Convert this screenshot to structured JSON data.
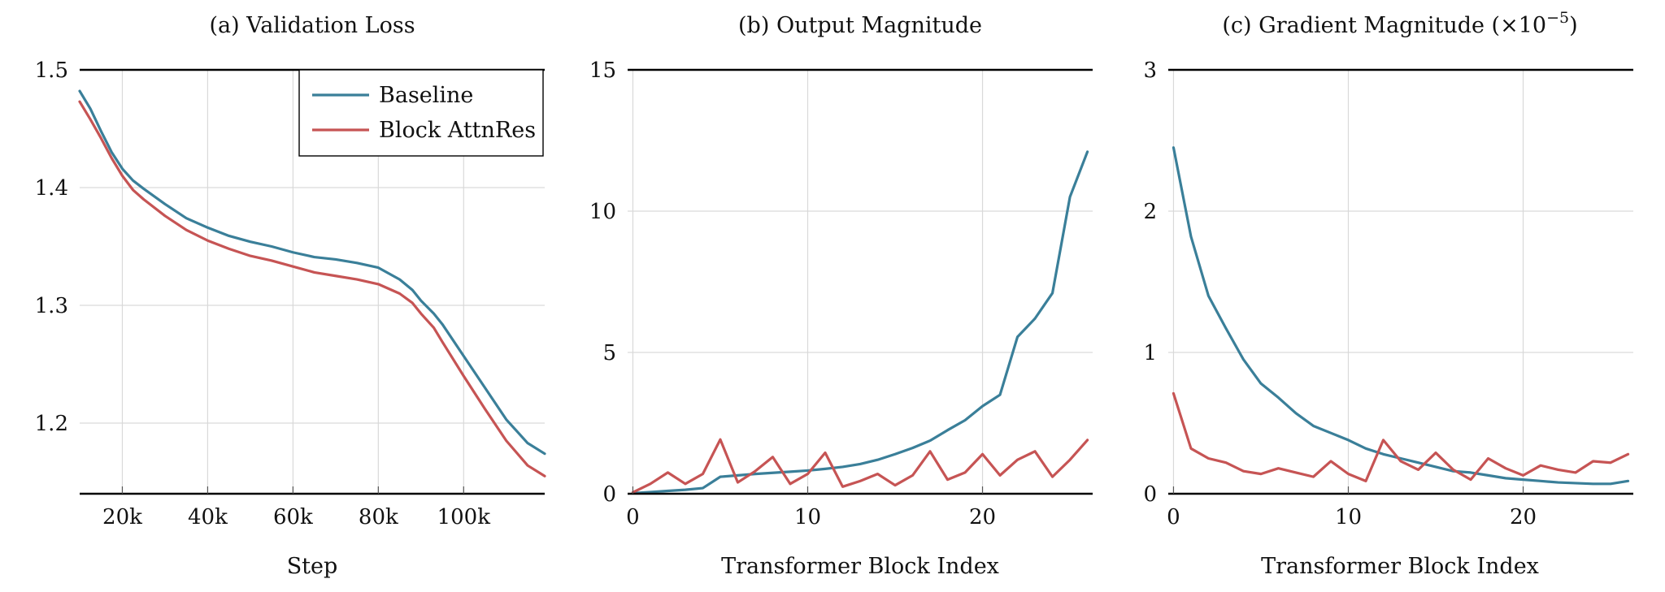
{
  "colors": {
    "baseline": "#3a7f99",
    "block_attnres": "#c65454",
    "grid": "#d9d9d9",
    "axis": "#000000"
  },
  "chart_data": [
    {
      "type": "line",
      "title": "(a) Validation Loss",
      "xlabel": "Step",
      "ylabel": "",
      "xlim": [
        10000,
        119000
      ],
      "ylim": [
        1.14,
        1.5
      ],
      "xticks": [
        20000,
        40000,
        60000,
        80000,
        100000
      ],
      "xtick_labels": [
        "20k",
        "40k",
        "60k",
        "80k",
        "100k"
      ],
      "yticks": [
        1.2,
        1.3,
        1.4,
        1.5
      ],
      "ytick_labels": [
        "1.2",
        "1.3",
        "1.4",
        "1.5"
      ],
      "grid": true,
      "legend": {
        "placement": "top-right",
        "entries": [
          "Baseline",
          "Block AttnRes"
        ]
      },
      "series": [
        {
          "name": "Baseline",
          "x": [
            10000,
            12500,
            15000,
            17500,
            20000,
            22500,
            25000,
            30000,
            35000,
            40000,
            45000,
            50000,
            55000,
            60000,
            65000,
            70000,
            75000,
            80000,
            85000,
            88000,
            90000,
            93000,
            95000,
            100000,
            105000,
            110000,
            115000,
            119000
          ],
          "y": [
            1.482,
            1.467,
            1.448,
            1.43,
            1.416,
            1.406,
            1.399,
            1.386,
            1.374,
            1.366,
            1.359,
            1.354,
            1.35,
            1.345,
            1.341,
            1.339,
            1.336,
            1.332,
            1.322,
            1.313,
            1.304,
            1.293,
            1.284,
            1.257,
            1.23,
            1.203,
            1.183,
            1.174
          ]
        },
        {
          "name": "Block AttnRes",
          "x": [
            10000,
            12500,
            15000,
            17500,
            20000,
            22500,
            25000,
            30000,
            35000,
            40000,
            45000,
            50000,
            55000,
            60000,
            65000,
            70000,
            75000,
            80000,
            85000,
            88000,
            90000,
            93000,
            95000,
            100000,
            105000,
            110000,
            115000,
            119000
          ],
          "y": [
            1.473,
            1.458,
            1.442,
            1.425,
            1.41,
            1.398,
            1.39,
            1.376,
            1.364,
            1.355,
            1.348,
            1.342,
            1.338,
            1.333,
            1.328,
            1.325,
            1.322,
            1.318,
            1.31,
            1.302,
            1.293,
            1.281,
            1.269,
            1.24,
            1.212,
            1.185,
            1.164,
            1.155
          ]
        }
      ]
    },
    {
      "type": "line",
      "title": "(b) Output Magnitude",
      "xlabel": "Transformer Block Index",
      "ylabel": "",
      "xlim": [
        -0.3,
        26.3
      ],
      "ylim": [
        0,
        15
      ],
      "xticks": [
        0,
        10,
        20
      ],
      "xtick_labels": [
        "0",
        "10",
        "20"
      ],
      "yticks": [
        0,
        5,
        10,
        15
      ],
      "ytick_labels": [
        "0",
        "5",
        "10",
        "15"
      ],
      "grid": true,
      "series": [
        {
          "name": "Baseline",
          "x": [
            0,
            1,
            2,
            3,
            4,
            5,
            6,
            7,
            8,
            9,
            10,
            11,
            12,
            13,
            14,
            15,
            16,
            17,
            18,
            19,
            20,
            21,
            22,
            23,
            24,
            25,
            26
          ],
          "y": [
            0.02,
            0.06,
            0.1,
            0.14,
            0.2,
            0.6,
            0.65,
            0.7,
            0.74,
            0.78,
            0.82,
            0.88,
            0.95,
            1.05,
            1.2,
            1.4,
            1.62,
            1.88,
            2.25,
            2.6,
            3.1,
            3.5,
            5.55,
            6.2,
            7.1,
            10.5,
            12.1
          ]
        },
        {
          "name": "Block AttnRes",
          "x": [
            0,
            1,
            2,
            3,
            4,
            5,
            6,
            7,
            8,
            9,
            10,
            11,
            12,
            13,
            14,
            15,
            16,
            17,
            18,
            19,
            20,
            21,
            22,
            23,
            24,
            25,
            26
          ],
          "y": [
            0.05,
            0.35,
            0.75,
            0.35,
            0.7,
            1.92,
            0.4,
            0.8,
            1.3,
            0.35,
            0.7,
            1.45,
            0.25,
            0.45,
            0.7,
            0.3,
            0.65,
            1.5,
            0.5,
            0.75,
            1.4,
            0.65,
            1.2,
            1.5,
            0.6,
            1.2,
            1.9
          ]
        }
      ]
    },
    {
      "type": "line",
      "title": "(c) Gradient Magnitude (×10⁻⁵)",
      "title_main": "(c) Gradient Magnitude (",
      "title_times": "×10",
      "title_exp": "−5",
      "title_end": ")",
      "xlabel": "Transformer Block Index",
      "ylabel": "",
      "xlim": [
        -0.3,
        26.3
      ],
      "ylim": [
        0,
        3
      ],
      "xticks": [
        0,
        10,
        20
      ],
      "xtick_labels": [
        "0",
        "10",
        "20"
      ],
      "yticks": [
        0,
        1,
        2,
        3
      ],
      "ytick_labels": [
        "0",
        "1",
        "2",
        "3"
      ],
      "grid": true,
      "series": [
        {
          "name": "Baseline",
          "x": [
            0,
            1,
            2,
            3,
            4,
            5,
            6,
            7,
            8,
            9,
            10,
            11,
            12,
            13,
            14,
            15,
            16,
            17,
            18,
            19,
            20,
            21,
            22,
            23,
            24,
            25,
            26
          ],
          "y": [
            2.45,
            1.82,
            1.4,
            1.17,
            0.95,
            0.78,
            0.68,
            0.57,
            0.48,
            0.43,
            0.38,
            0.32,
            0.28,
            0.25,
            0.22,
            0.19,
            0.16,
            0.15,
            0.13,
            0.11,
            0.1,
            0.09,
            0.08,
            0.075,
            0.07,
            0.07,
            0.09
          ]
        },
        {
          "name": "Block AttnRes",
          "x": [
            0,
            1,
            2,
            3,
            4,
            5,
            6,
            7,
            8,
            9,
            10,
            11,
            12,
            13,
            14,
            15,
            16,
            17,
            18,
            19,
            20,
            21,
            22,
            23,
            24,
            25,
            26
          ],
          "y": [
            0.71,
            0.32,
            0.25,
            0.22,
            0.16,
            0.14,
            0.18,
            0.15,
            0.12,
            0.23,
            0.14,
            0.09,
            0.38,
            0.23,
            0.17,
            0.29,
            0.17,
            0.1,
            0.25,
            0.18,
            0.13,
            0.2,
            0.17,
            0.15,
            0.23,
            0.22,
            0.28
          ]
        }
      ]
    }
  ]
}
